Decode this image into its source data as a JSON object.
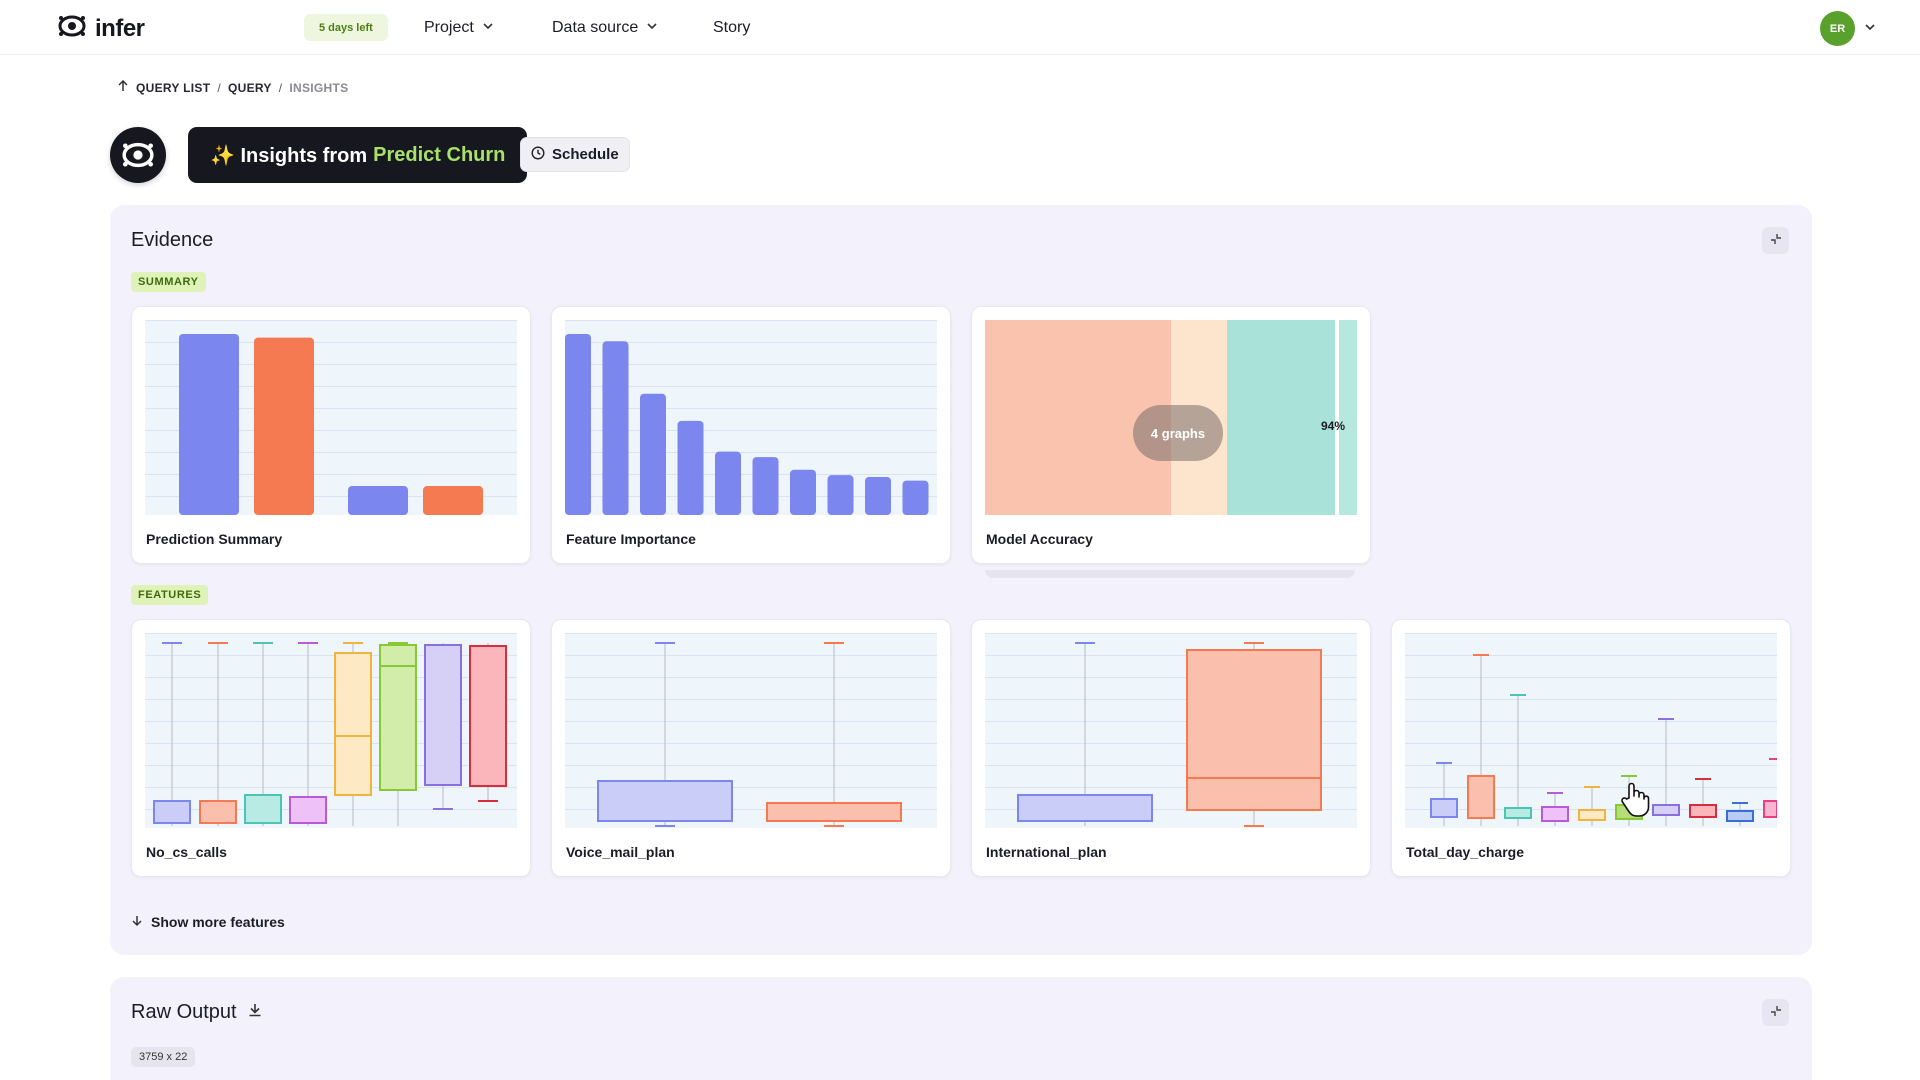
{
  "app": {
    "name": "infer",
    "trial_badge": "5 days left"
  },
  "nav": {
    "items": [
      {
        "label": "Project",
        "has_menu": true
      },
      {
        "label": "Data source",
        "has_menu": true
      },
      {
        "label": "Story",
        "has_menu": false
      }
    ]
  },
  "user": {
    "initials": "ER",
    "avatar_color": "#5aa02c"
  },
  "breadcrumb": {
    "items": [
      "QUERY LIST",
      "QUERY",
      "INSIGHTS"
    ],
    "separator": "/"
  },
  "header": {
    "title_prefix": "✨ Insights from",
    "title_accent": "Predict Churn",
    "schedule_label": "Schedule"
  },
  "evidence": {
    "title": "Evidence",
    "summary_tag": "SUMMARY",
    "features_tag": "FEATURES",
    "summary_cards": [
      {
        "caption": "Prediction Summary"
      },
      {
        "caption": "Feature Importance"
      },
      {
        "caption": "Model Accuracy",
        "overlay": "4 graphs",
        "value_label": "94%"
      }
    ],
    "feature_cards": [
      {
        "caption": "No_cs_calls"
      },
      {
        "caption": "Voice_mail_plan"
      },
      {
        "caption": "International_plan"
      },
      {
        "caption": "Total_day_charge"
      }
    ],
    "show_more_label": "Show more features"
  },
  "raw_output": {
    "title": "Raw Output",
    "dimensions": "3759 x 22"
  },
  "colors": {
    "blue": "#7b86ee",
    "orange": "#f57a52",
    "salmon": "#f9c3ae",
    "peach": "#fde4cc",
    "teal": "#a8e2d8",
    "accent_green": "#a8e06a"
  },
  "chart_data": [
    {
      "type": "bar",
      "title": "Prediction Summary",
      "values": [
        1.0,
        0.98,
        0.16,
        0.16
      ]
    },
    {
      "type": "bar",
      "title": "Feature Importance",
      "values": [
        1.0,
        0.96,
        0.67,
        0.52,
        0.35,
        0.32,
        0.25,
        0.22,
        0.21,
        0.19
      ]
    }
  ]
}
